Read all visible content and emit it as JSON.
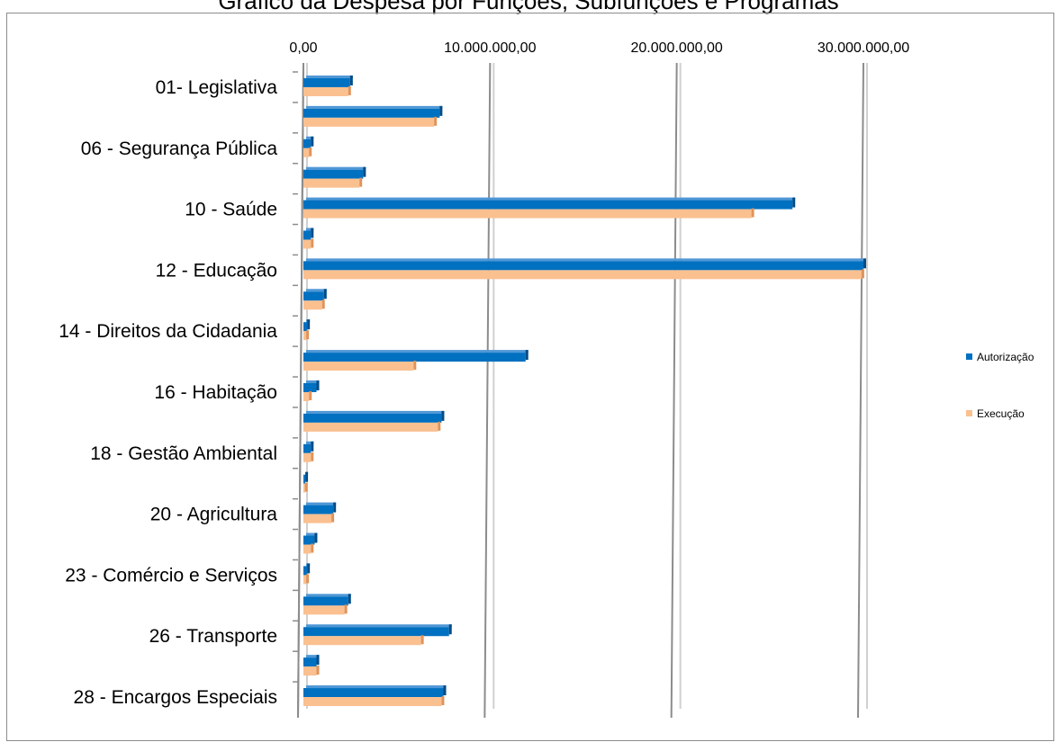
{
  "chart_data": {
    "type": "bar",
    "orientation": "horizontal",
    "title": "Gráfico da Despesa por Funções, Subfunções e Programas",
    "categories": [
      "01- Legislativa",
      "",
      "06 - Segurança Pública",
      "",
      "10 - Saúde",
      "",
      "12 - Educação",
      "",
      "14 - Direitos da Cidadania",
      "",
      "16 - Habitação",
      "",
      "18 - Gestão Ambiental",
      "",
      "20 - Agricultura",
      "",
      "23 - Comércio e Serviços",
      "",
      "26 - Transporte",
      "",
      "28 - Encargos Especiais"
    ],
    "series": [
      {
        "name": "Autorização",
        "color": "#0070c0",
        "values": [
          2500000,
          7300000,
          400000,
          3200000,
          26200000,
          400000,
          30000000,
          1100000,
          200000,
          11900000,
          700000,
          7400000,
          400000,
          100000,
          1600000,
          600000,
          200000,
          2400000,
          7800000,
          700000,
          7500000
        ]
      },
      {
        "name": "Execução",
        "color": "#fac090",
        "values": [
          2400000,
          7000000,
          300000,
          3000000,
          24000000,
          400000,
          29900000,
          1000000,
          150000,
          5900000,
          300000,
          7200000,
          400000,
          80000,
          1500000,
          400000,
          150000,
          2200000,
          6300000,
          700000,
          7400000
        ]
      }
    ],
    "x_ticks": [
      "0,00",
      "10.000.000,00",
      "20.000.000,00",
      "30.000.000,00"
    ],
    "xlim": [
      0,
      30000000
    ],
    "xlabel": "",
    "ylabel": "",
    "grid": true,
    "legend_position": "right"
  }
}
